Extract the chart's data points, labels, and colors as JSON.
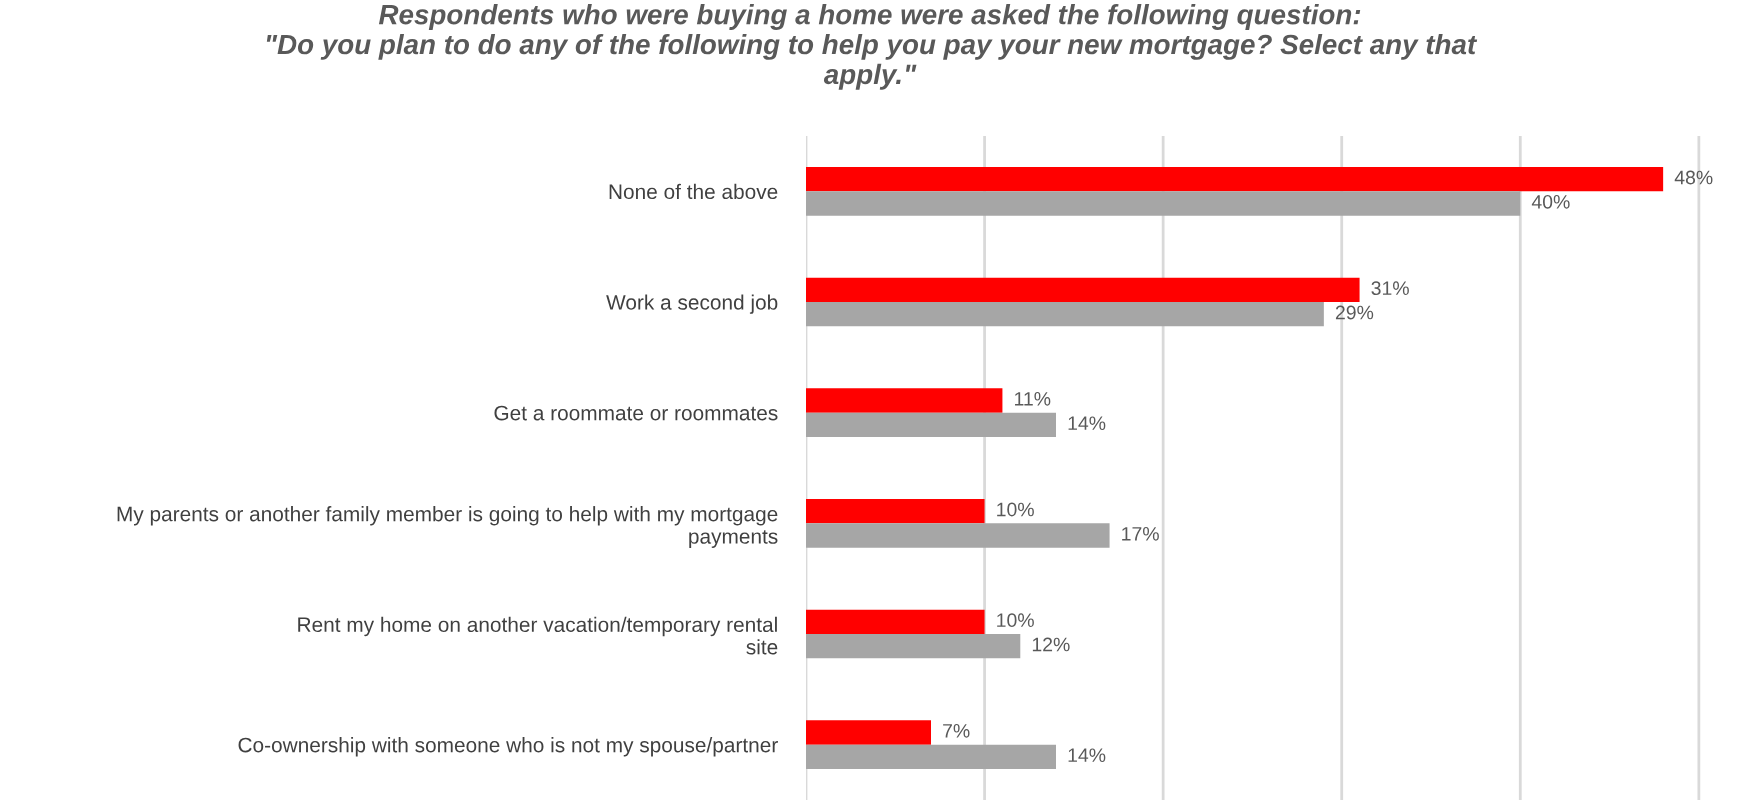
{
  "chart_data": {
    "type": "bar",
    "orientation": "horizontal",
    "title": "Respondents who were buying a home were asked the following question:\n\"Do you plan to do any of the following to help you pay your new mortgage? Select any that\napply.\"",
    "categories": [
      "None of the above",
      "Work a second job",
      "Get a roommate or roommates",
      "My parents or another family member is going to help with my mortgage\npayments",
      "Rent my home on another vacation/temporary rental\nsite",
      "Co-ownership with someone who is not my spouse/partner"
    ],
    "series": [
      {
        "color": "#ff0000",
        "values": [
          48,
          31,
          11,
          10,
          10,
          7
        ],
        "value_labels": [
          "48%",
          "31%",
          "11%",
          "10%",
          "10%",
          "7%"
        ]
      },
      {
        "color": "#a6a6a6",
        "values": [
          40,
          29,
          14,
          17,
          12,
          14
        ],
        "value_labels": [
          "40%",
          "29%",
          "14%",
          "17%",
          "12%",
          "14%"
        ]
      }
    ],
    "grid": "x",
    "legend": false
  }
}
